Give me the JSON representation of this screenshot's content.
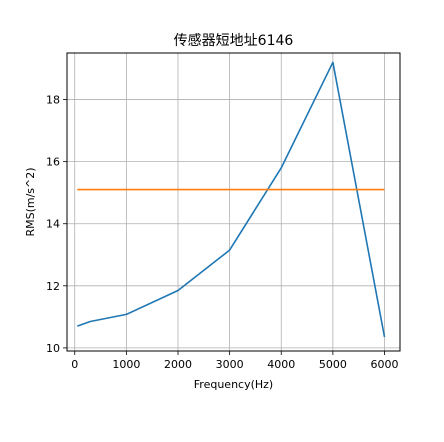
{
  "chart_data": {
    "type": "line",
    "title": "传感器短地址6146",
    "xlabel": "Frequency(Hz)",
    "ylabel": "RMS(m/s^2)",
    "xlim": [
      -150,
      6300
    ],
    "ylim": [
      9.9,
      19.5
    ],
    "xticks": [
      0,
      1000,
      2000,
      3000,
      4000,
      5000,
      6000
    ],
    "yticks": [
      10,
      12,
      14,
      16,
      18
    ],
    "grid": true,
    "series": [
      {
        "color": "#1f77b4",
        "x": [
          50,
          300,
          1000,
          2000,
          3000,
          4000,
          5000,
          6000
        ],
        "y": [
          10.7,
          10.85,
          11.08,
          11.85,
          13.15,
          15.8,
          19.2,
          10.35
        ]
      },
      {
        "color": "#ff7f0e",
        "x": [
          50,
          6000
        ],
        "y": [
          15.1,
          15.1
        ]
      }
    ]
  }
}
